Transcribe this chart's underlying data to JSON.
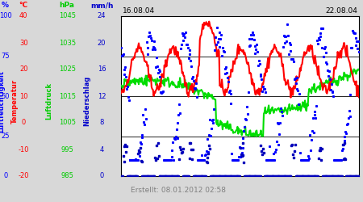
{
  "title_left": "16.08.04",
  "title_right": "22.08.04",
  "footer": "Erstellt: 08.01.2012 02:58",
  "bg_color": "#d8d8d8",
  "plot_bg_color": "#ffffff",
  "footer_bg": "#f0f0f0",
  "left_labels": {
    "humidity": "Luftfeuchtigkeit",
    "temperature": "Temperatur",
    "pressure": "Luftdruck",
    "rain": "Niederschlag"
  },
  "units": {
    "humidity": "%",
    "temperature": "°C",
    "pressure": "hPa",
    "rain": "mm/h"
  },
  "y_axes": {
    "humidity": {
      "min": 0,
      "max": 100,
      "ticks": [
        0,
        25,
        50,
        75,
        100
      ]
    },
    "temperature": {
      "min": -20,
      "max": 40,
      "ticks": [
        -20,
        -10,
        0,
        10,
        20,
        30,
        40
      ]
    },
    "pressure": {
      "min": 985,
      "max": 1045,
      "ticks": [
        985,
        995,
        1005,
        1015,
        1025,
        1035,
        1045
      ]
    },
    "rain": {
      "min": 0,
      "max": 24,
      "ticks": [
        0,
        4,
        8,
        12,
        16,
        20,
        24
      ]
    }
  },
  "colors": {
    "humidity": "#0000ff",
    "temperature": "#ff0000",
    "pressure": "#00dd00",
    "rain": "#0000bb",
    "grid": "#000000",
    "label_humidity": "#0000ff",
    "label_temperature": "#ff0000",
    "label_pressure": "#00cc00",
    "label_rain": "#0000cc",
    "footer_text": "#808080"
  },
  "n_points": 336
}
